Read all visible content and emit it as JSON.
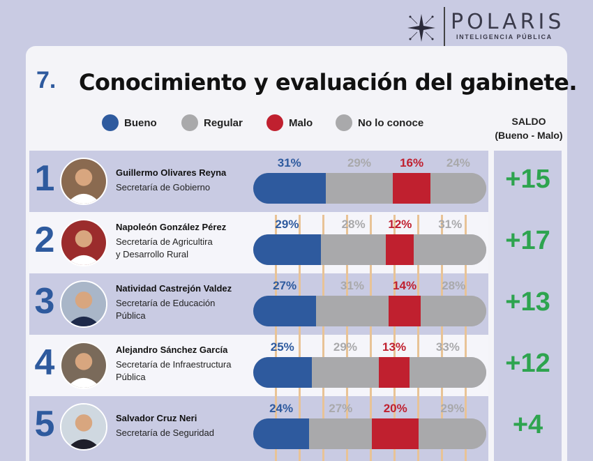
{
  "brand": {
    "name": "POLARIS",
    "tagline": "INTELIGENCIA PÚBLICA"
  },
  "title": {
    "number": "7.",
    "text": "Conocimiento y evaluación del gabinete."
  },
  "legend": [
    {
      "label": "Bueno",
      "color": "#2e5a9e"
    },
    {
      "label": "Regular",
      "color": "#a9a9ab"
    },
    {
      "label": "Malo",
      "color": "#c0202f"
    },
    {
      "label": "No lo conoce",
      "color": "#a9a9ab"
    }
  ],
  "saldo_header": {
    "line1": "SALDO",
    "line2": "(Bueno - Malo)"
  },
  "colors": {
    "bueno": "#2e5a9e",
    "regular": "#a9a9ab",
    "malo": "#c0202f",
    "no_conoce": "#a9a9ab",
    "saldo": "#2ea44f",
    "label_gray": "#a9a9ab"
  },
  "chart_data": {
    "type": "bar",
    "orientation": "horizontal-stacked",
    "title": "Conocimiento y evaluación del gabinete.",
    "series_names": [
      "Bueno",
      "Regular",
      "Malo",
      "No lo conoce"
    ],
    "rows": [
      {
        "rank": "1",
        "name": "Guillermo Olivares Reyna",
        "role": [
          "Secretaría de Gobierno"
        ],
        "bueno": 31,
        "regular": 29,
        "malo": 16,
        "no_conoce": 24,
        "labels": [
          "31%",
          "29%",
          "16%",
          "24%"
        ],
        "saldo": "+15"
      },
      {
        "rank": "2",
        "name": "Napoleón González Pérez",
        "role": [
          "Secretaría de Agricultira",
          "y  Desarrollo Rural"
        ],
        "bueno": 29,
        "regular": 28,
        "malo": 12,
        "no_conoce": 31,
        "labels": [
          "29%",
          "28%",
          "12%",
          "31%"
        ],
        "saldo": "+17"
      },
      {
        "rank": "3",
        "name": "Natividad Castrejón Valdez",
        "role": [
          "Secretaría de Educación",
          "Pública"
        ],
        "bueno": 27,
        "regular": 31,
        "malo": 14,
        "no_conoce": 28,
        "labels": [
          "27%",
          "31%",
          "14%",
          "28%"
        ],
        "saldo": "+13"
      },
      {
        "rank": "4",
        "name": "Alejandro Sánchez García",
        "role": [
          "Secretaría de Infraestructura",
          "Pública"
        ],
        "bueno": 25,
        "regular": 29,
        "malo": 13,
        "no_conoce": 33,
        "labels": [
          "25%",
          "29%",
          "13%",
          "33%"
        ],
        "saldo": "+12"
      },
      {
        "rank": "5",
        "name": "Salvador Cruz Neri",
        "role": [
          "Secretaría de Seguridad"
        ],
        "bueno": 24,
        "regular": 27,
        "malo": 20,
        "no_conoce": 29,
        "labels": [
          "24%",
          "27%",
          "20%",
          "29%"
        ],
        "saldo": "+4"
      }
    ]
  }
}
